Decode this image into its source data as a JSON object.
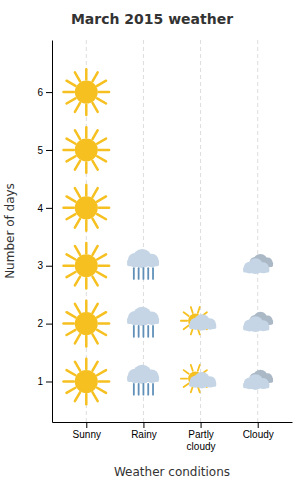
{
  "chart_data": {
    "type": "pictogram",
    "title": "March 2015 weather",
    "xlabel": "Weather conditions",
    "ylabel": "Number of days",
    "categories": [
      "Sunny",
      "Rainy",
      "Partly\ncloudy",
      "Cloudy"
    ],
    "values": [
      6,
      3,
      2,
      3
    ],
    "colors": [
      "#f5c020",
      "#6090b8",
      "#f5c020",
      "#c5d5e5"
    ],
    "ylim": [
      0.3,
      6.9
    ],
    "yticks": [
      1,
      2,
      3,
      4,
      5,
      6
    ],
    "grid": true
  }
}
